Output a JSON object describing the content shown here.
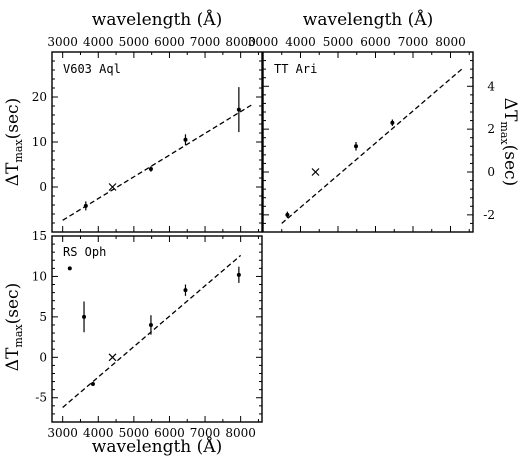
{
  "chart_data": [
    {
      "type": "scatter",
      "panel_label": "V603 Aql",
      "xlabel": "wavelength (Å)",
      "ylabel_main": "ΔT",
      "ylabel_sub": "max",
      "ylabel_unit": "(sec)",
      "xlim": [
        2700,
        8600
      ],
      "ylim": [
        -10,
        30
      ],
      "xticks": [
        3000,
        4000,
        5000,
        6000,
        7000,
        8000
      ],
      "yticks": [
        0,
        10,
        20
      ],
      "points": [
        {
          "x": 3650,
          "y": -4.2,
          "yerr": 1.0,
          "marker": "dot"
        },
        {
          "x": 4400,
          "y": 0.0,
          "yerr": 0,
          "marker": "cross"
        },
        {
          "x": 5480,
          "y": 4.0,
          "yerr": 0.6,
          "marker": "dot"
        },
        {
          "x": 6450,
          "y": 10.5,
          "yerr": 1.2,
          "marker": "dot"
        },
        {
          "x": 7950,
          "y": 17.2,
          "yerr": 5.0,
          "marker": "dot"
        }
      ],
      "fit": {
        "x": [
          3000,
          8300
        ],
        "y": [
          -7.4,
          18.2
        ]
      }
    },
    {
      "type": "scatter",
      "panel_label": "TT Ari",
      "xlabel": "wavelength (Å)",
      "ylabel_main": "ΔT",
      "ylabel_sub": "max",
      "ylabel_unit": "(sec)",
      "xlim": [
        3000,
        8600
      ],
      "ylim": [
        -2.8,
        5.6
      ],
      "xticks": [
        3000,
        4000,
        5000,
        6000,
        7000,
        8000
      ],
      "yticks": [
        -2,
        0,
        2,
        4
      ],
      "points": [
        {
          "x": 3650,
          "y": -2.0,
          "yerr": 0.15,
          "marker": "dot"
        },
        {
          "x": 4400,
          "y": 0.0,
          "yerr": 0,
          "marker": "cross"
        },
        {
          "x": 5480,
          "y": 1.2,
          "yerr": 0.2,
          "marker": "dot"
        },
        {
          "x": 6450,
          "y": 2.3,
          "yerr": 0.15,
          "marker": "dot"
        }
      ],
      "fit": {
        "x": [
          3500,
          8300
        ],
        "y": [
          -2.4,
          4.8
        ]
      }
    },
    {
      "type": "scatter",
      "panel_label": "RS Oph",
      "xlabel": "wavelength (Å)",
      "ylabel_main": "ΔT",
      "ylabel_sub": "max",
      "ylabel_unit": "(sec)",
      "xlim": [
        2700,
        8600
      ],
      "ylim": [
        -8,
        15
      ],
      "xticks": [
        3000,
        4000,
        5000,
        6000,
        7000,
        8000
      ],
      "yticks": [
        -5,
        0,
        5,
        10,
        15
      ],
      "points": [
        {
          "x": 3200,
          "y": 11.0,
          "yerr": 0,
          "marker": "dot"
        },
        {
          "x": 3600,
          "y": 5.0,
          "yerr": 1.9,
          "marker": "dot"
        },
        {
          "x": 3850,
          "y": -3.3,
          "yerr": 0,
          "marker": "dot"
        },
        {
          "x": 4400,
          "y": 0.0,
          "yerr": 0,
          "marker": "cross"
        },
        {
          "x": 5480,
          "y": 4.0,
          "yerr": 1.2,
          "marker": "dot"
        },
        {
          "x": 6450,
          "y": 8.3,
          "yerr": 0.7,
          "marker": "dot"
        },
        {
          "x": 7950,
          "y": 10.2,
          "yerr": 1.0,
          "marker": "dot"
        }
      ],
      "fit": {
        "x": [
          3000,
          8000
        ],
        "y": [
          -6.2,
          12.6
        ]
      }
    }
  ]
}
